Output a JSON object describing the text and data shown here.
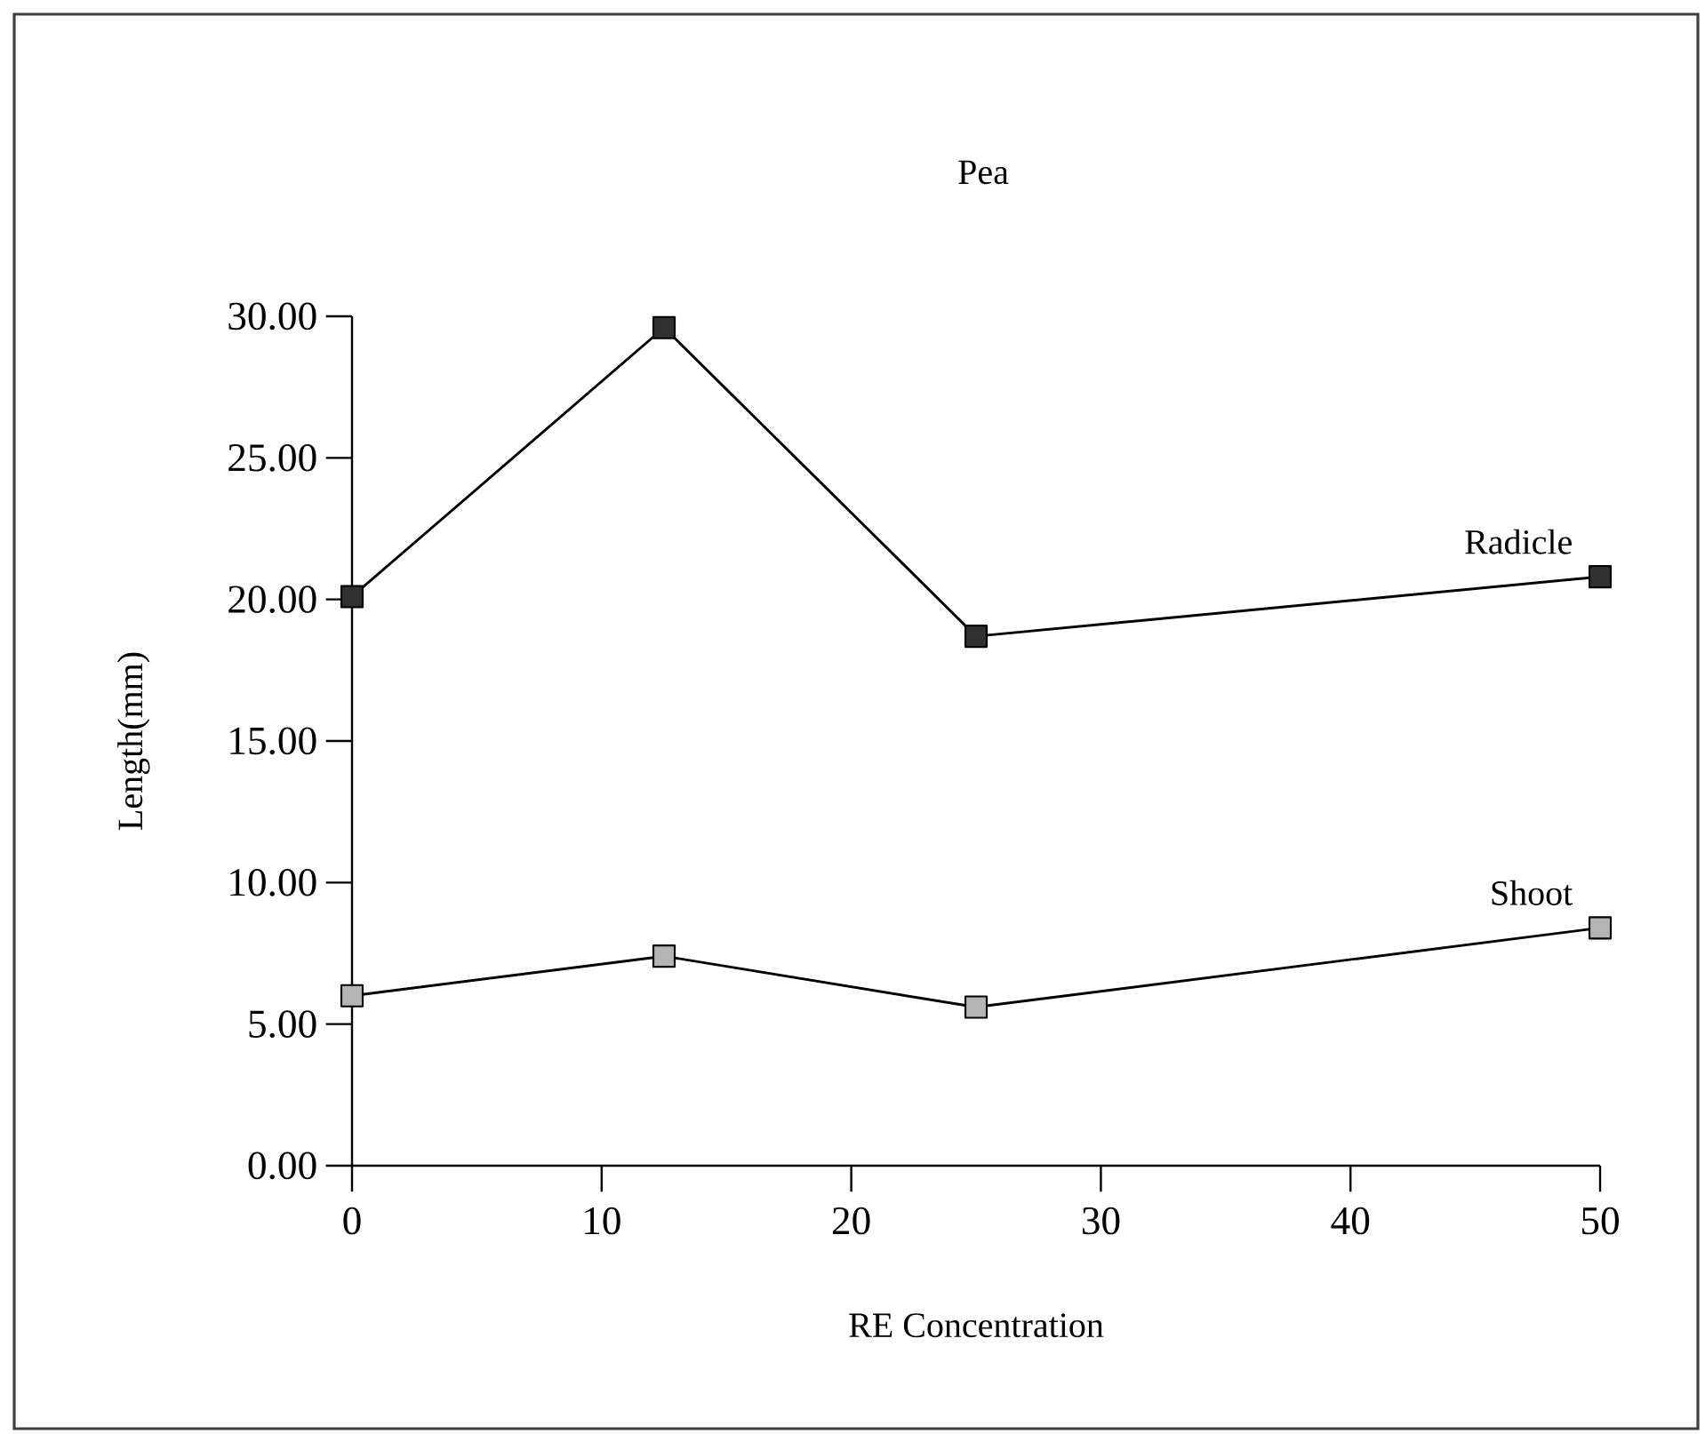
{
  "chart_data": {
    "type": "line",
    "title": "Pea",
    "xlabel": "RE Concentration",
    "ylabel": "Length(mm)",
    "xlim": [
      0,
      50
    ],
    "ylim": [
      0,
      30
    ],
    "xticks": [
      0,
      10,
      20,
      30,
      40,
      50
    ],
    "yticks": [
      {
        "value": 0,
        "label": "0.00"
      },
      {
        "value": 5,
        "label": "5.00"
      },
      {
        "value": 10,
        "label": "10.00"
      },
      {
        "value": 15,
        "label": "15.00"
      },
      {
        "value": 20,
        "label": "20.00"
      },
      {
        "value": 25,
        "label": "25.00"
      },
      {
        "value": 30,
        "label": "30.00"
      }
    ],
    "x": [
      0,
      12.5,
      25,
      50
    ],
    "series": [
      {
        "name": "Radicle",
        "color": "#303030",
        "values": [
          20.1,
          29.6,
          18.7,
          20.8
        ]
      },
      {
        "name": "Shoot",
        "color": "#b4b4b4",
        "values": [
          6.0,
          7.4,
          5.6,
          8.4
        ]
      }
    ],
    "marker": "square",
    "line_style": "solid",
    "legend": false,
    "grid": false
  }
}
